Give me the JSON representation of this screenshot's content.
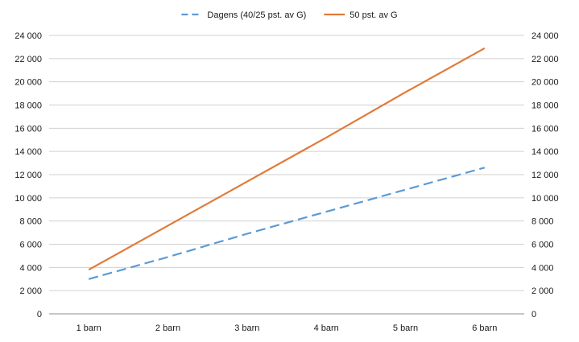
{
  "chart_data": {
    "type": "line",
    "categories": [
      "1 barn",
      "2 barn",
      "3 barn",
      "4 barn",
      "5 barn",
      "6 barn"
    ],
    "series": [
      {
        "name": "Dagens (40/25 pst. av G)",
        "values": [
          3000,
          4900,
          6900,
          8800,
          10700,
          12600
        ],
        "color": "#5b9bd5",
        "dashed": true
      },
      {
        "name": "50 pst. av G",
        "values": [
          3800,
          7600,
          11400,
          15200,
          19100,
          22900
        ],
        "color": "#e07b39",
        "dashed": false
      }
    ],
    "ylim": [
      0,
      24000
    ],
    "yticks": [
      "0",
      "2 000",
      "4 000",
      "6 000",
      "8 000",
      "10 000",
      "12 000",
      "14 000",
      "16 000",
      "18 000",
      "20 000",
      "22 000",
      "24 000"
    ],
    "secondary_y_axis": true,
    "grid": true,
    "legend": "top-center",
    "title": "",
    "xlabel": "",
    "ylabel": ""
  }
}
